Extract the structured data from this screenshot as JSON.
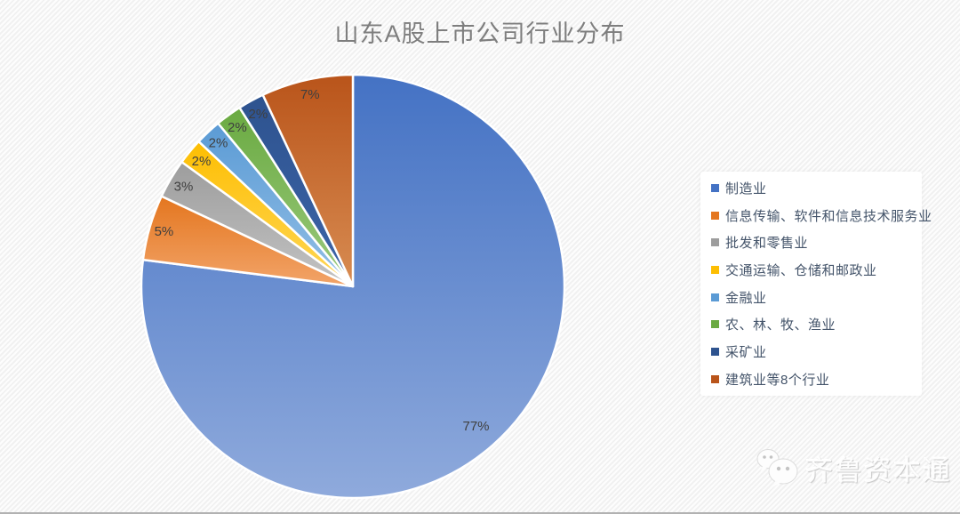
{
  "chart_data": {
    "type": "pie",
    "title": "山东A股上市公司行业分布",
    "legend_position": "right",
    "label_format": "percent",
    "total": 100,
    "slices": [
      {
        "label": "制造业",
        "value": 77,
        "display": "77%",
        "color": "#4472c4",
        "color_light": "#8faadc"
      },
      {
        "label": "信息传输、软件和信息技术服务业",
        "value": 5,
        "display": "5%",
        "color": "#e4761f",
        "color_light": "#f2a469"
      },
      {
        "label": "批发和零售业",
        "value": 3,
        "display": "3%",
        "color": "#9d9d9d",
        "color_light": "#c3c3c3"
      },
      {
        "label": "交通运输、仓储和邮政业",
        "value": 2,
        "display": "2%",
        "color": "#fdbe02",
        "color_light": "#ffd758"
      },
      {
        "label": "金融业",
        "value": 2,
        "display": "2%",
        "color": "#5b9bd5",
        "color_light": "#93bfe6"
      },
      {
        "label": "农、林、牧、渔业",
        "value": 2,
        "display": "2%",
        "color": "#6aaa41",
        "color_light": "#9bca7e"
      },
      {
        "label": "采矿业",
        "value": 2,
        "display": "2%",
        "color": "#2e538f",
        "color_light": "#3c64a8"
      },
      {
        "label": "建筑业等8个行业",
        "value": 7,
        "display": "7%",
        "color": "#b9541a",
        "color_light": "#d88c52"
      }
    ]
  },
  "watermark": {
    "text": "齐鲁资本通",
    "icon": "wechat-icon"
  },
  "styles": {
    "title_color": "#7e7e7e",
    "pie_label_color": "#3f3f3f",
    "legend_text_color": "#44546a",
    "legend_background": "#ffffff",
    "slice_border_color": "#ffffff",
    "page_stripe_light": "#fdfdfd",
    "page_stripe_dark": "#f1f1f1",
    "bottom_line_color": "#b2b2b2"
  }
}
